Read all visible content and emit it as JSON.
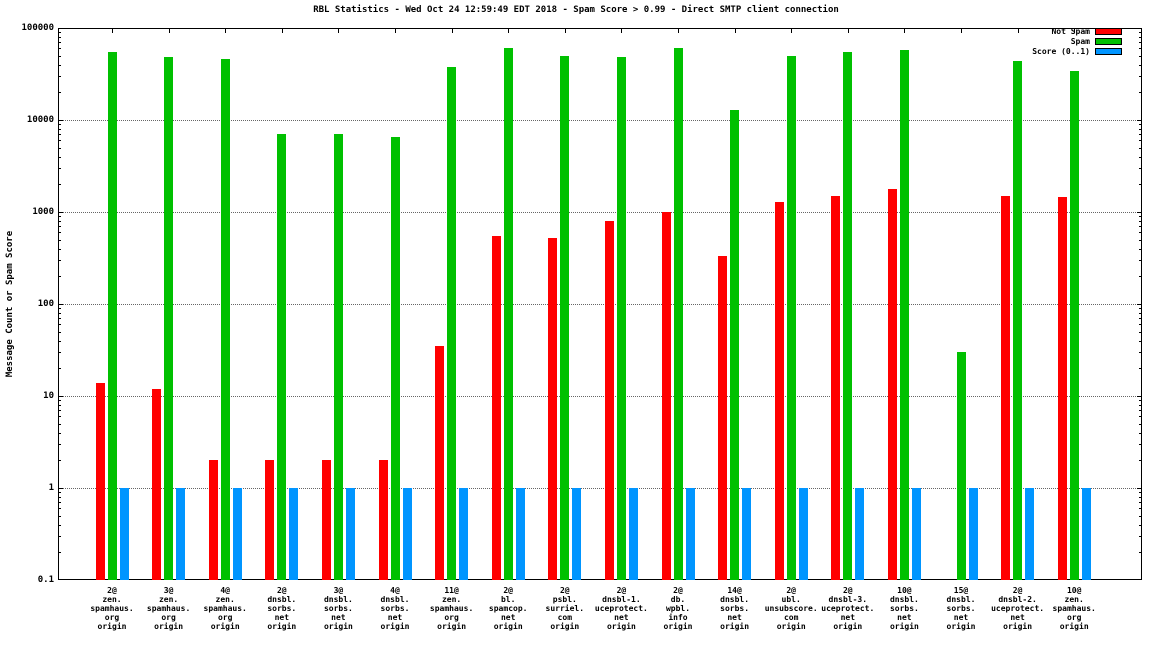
{
  "chart_data": {
    "type": "bar",
    "title": "RBL Statistics - Wed Oct 24 12:59:49 EDT 2018 - Spam Score > 0.99 - Direct SMTP client connection",
    "ylabel": "Message Count or Spam Score",
    "xlabel": "",
    "yscale": "log",
    "ylim": [
      0.1,
      100000
    ],
    "yticks": [
      0.1,
      1,
      10,
      100,
      1000,
      10000,
      100000
    ],
    "grid": "horizontal-dotted",
    "legend_position": "top-right-inside",
    "categories": [
      [
        "2@",
        "zen.",
        "spamhaus.",
        "org",
        "origin"
      ],
      [
        "3@",
        "zen.",
        "spamhaus.",
        "org",
        "origin"
      ],
      [
        "4@",
        "zen.",
        "spamhaus.",
        "org",
        "origin"
      ],
      [
        "2@",
        "dnsbl.",
        "sorbs.",
        "net",
        "origin"
      ],
      [
        "3@",
        "dnsbl.",
        "sorbs.",
        "net",
        "origin"
      ],
      [
        "4@",
        "dnsbl.",
        "sorbs.",
        "net",
        "origin"
      ],
      [
        "11@",
        "zen.",
        "spamhaus.",
        "org",
        "origin"
      ],
      [
        "2@",
        "bl.",
        "spamcop.",
        "net",
        "origin"
      ],
      [
        "2@",
        "psbl.",
        "surriel.",
        "com",
        "origin"
      ],
      [
        "2@",
        "dnsbl-1.",
        "uceprotect.",
        "net",
        "origin"
      ],
      [
        "2@",
        "db.",
        "wpbl.",
        "info",
        "origin"
      ],
      [
        "14@",
        "dnsbl.",
        "sorbs.",
        "net",
        "origin"
      ],
      [
        "2@",
        "ubl.",
        "unsubscore.",
        "com",
        "origin"
      ],
      [
        "2@",
        "dnsbl-3.",
        "uceprotect.",
        "net",
        "origin"
      ],
      [
        "10@",
        "dnsbl.",
        "sorbs.",
        "net",
        "origin"
      ],
      [
        "15@",
        "dnsbl.",
        "sorbs.",
        "net",
        "origin"
      ],
      [
        "2@",
        "dnsbl-2.",
        "uceprotect.",
        "net",
        "origin"
      ],
      [
        "10@",
        "zen.",
        "spamhaus.",
        "org",
        "origin"
      ]
    ],
    "series": [
      {
        "name": "Not Spam",
        "color": "#ff0000",
        "values": [
          14,
          12,
          2,
          2,
          2,
          2,
          35,
          550,
          520,
          800,
          1000,
          330,
          1300,
          1500,
          1800,
          0,
          1500,
          1450
        ]
      },
      {
        "name": "Spam",
        "color": "#00c000",
        "values": [
          55000,
          48000,
          46000,
          7000,
          7000,
          6500,
          38000,
          60000,
          50000,
          48000,
          60000,
          13000,
          50000,
          55000,
          58000,
          30,
          44000,
          34000
        ]
      },
      {
        "name": "Score (0..1)",
        "color": "#0095ff",
        "values": [
          1,
          1,
          1,
          1,
          1,
          1,
          1,
          1,
          1,
          1,
          1,
          1,
          1,
          1,
          1,
          1,
          1,
          1
        ]
      }
    ]
  }
}
